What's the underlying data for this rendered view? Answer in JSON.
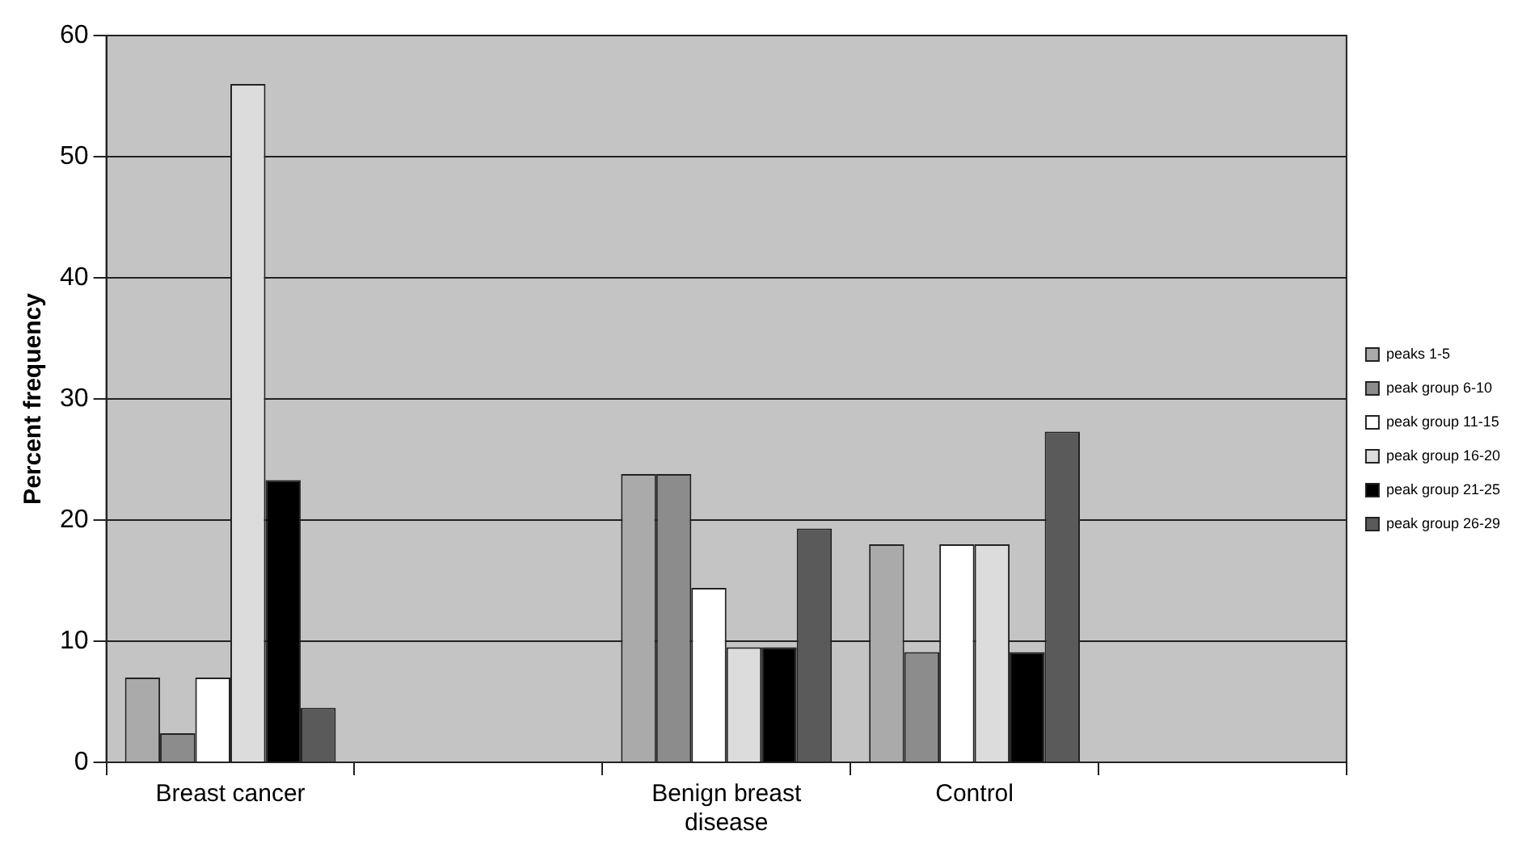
{
  "chart_data": {
    "type": "bar",
    "ylabel": "Percent frequency",
    "categories": [
      "Breast cancer",
      null,
      "Benign breast disease",
      "Control",
      null
    ],
    "series": [
      {
        "name": "peaks 1-5",
        "color": "#aaaaaa",
        "values": [
          7,
          null,
          23.8,
          18,
          null
        ]
      },
      {
        "name": "peak group 6-10",
        "color": "#8c8c8c",
        "values": [
          2.4,
          null,
          23.8,
          9.1,
          null
        ]
      },
      {
        "name": "peak group 11-15",
        "color": "#ffffff",
        "values": [
          7,
          null,
          14.4,
          18,
          null
        ]
      },
      {
        "name": "peak group 16-20",
        "color": "#dcdcdc",
        "values": [
          56,
          null,
          9.5,
          18,
          null
        ]
      },
      {
        "name": "peak group 21-25",
        "color": "#000000",
        "values": [
          23.3,
          null,
          9.5,
          9.1,
          null
        ]
      },
      {
        "name": "peak group 26-29",
        "color": "#5a5a5a",
        "values": [
          4.5,
          null,
          19.3,
          27.3,
          null
        ]
      }
    ],
    "ylim": [
      0,
      60
    ],
    "yticks": [
      0,
      10,
      20,
      30,
      40,
      50,
      60
    ],
    "grid": "y",
    "legend": "right"
  }
}
